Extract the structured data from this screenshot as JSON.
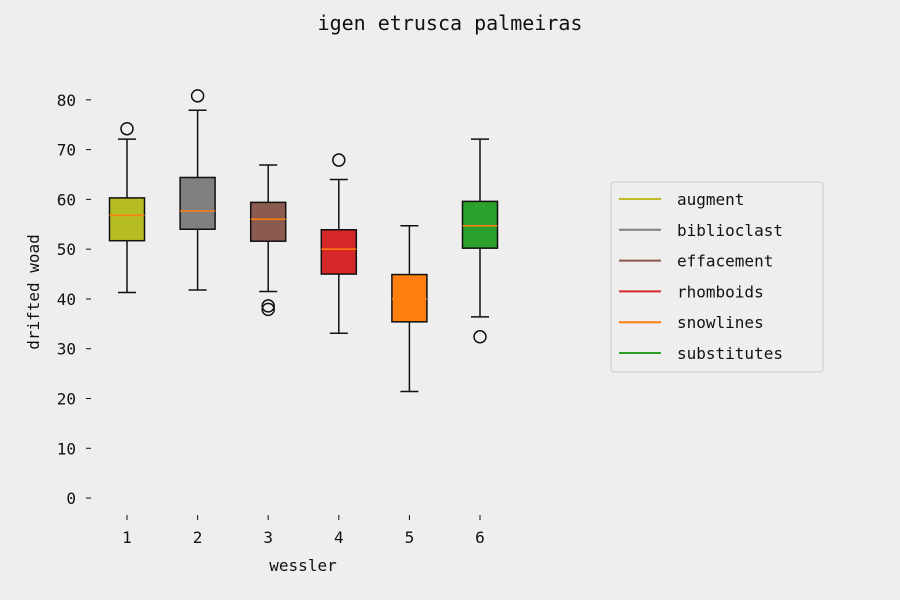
{
  "chart_data": {
    "type": "box",
    "title": "igen etrusca palmeiras",
    "xlabel": "wessler",
    "ylabel": "drifted woad",
    "ylim": [
      -3,
      88
    ],
    "yticks": [
      0,
      10,
      20,
      30,
      40,
      50,
      60,
      70,
      80
    ],
    "categories": [
      "1",
      "2",
      "3",
      "4",
      "5",
      "6"
    ],
    "grid": false,
    "legend_position": "right",
    "series": [
      {
        "name": "augment",
        "color": "#bcbd22",
        "median_color": "#ff7f0e",
        "box_color": "#b5bd22",
        "whisker_low": 41.3,
        "q1": 51.7,
        "median": 56.8,
        "q3": 60.3,
        "whisker_high": 72.1,
        "outliers": [
          74.2
        ]
      },
      {
        "name": "biblioclast",
        "color": "#7f7f7f",
        "median_color": "#ff7f0e",
        "box_color": "#808080",
        "whisker_low": 41.8,
        "q1": 54.0,
        "median": 57.7,
        "q3": 64.4,
        "whisker_high": 77.9,
        "outliers": [
          80.8
        ]
      },
      {
        "name": "effacement",
        "color": "#8c564b",
        "median_color": "#ff7f0e",
        "box_color": "#8c5b4f",
        "whisker_low": 41.5,
        "q1": 51.6,
        "median": 56.0,
        "q3": 59.4,
        "whisker_high": 66.9,
        "outliers": [
          37.9,
          38.6
        ]
      },
      {
        "name": "rhomboids",
        "color": "#d62728",
        "median_color": "#ff7f0e",
        "box_color": "#d62728",
        "whisker_low": 33.1,
        "q1": 45.0,
        "median": 50.0,
        "q3": 53.9,
        "whisker_high": 64.0,
        "outliers": [
          67.9
        ]
      },
      {
        "name": "snowlines",
        "color": "#ff7f0e",
        "median_color": "#ff7f0e",
        "box_color": "#ff7f0e",
        "whisker_low": 21.4,
        "q1": 35.4,
        "median": 40.0,
        "q3": 44.9,
        "whisker_high": 54.7,
        "outliers": []
      },
      {
        "name": "substitutes",
        "color": "#2ca02c",
        "median_color": "#ff7f0e",
        "box_color": "#2ca02c",
        "whisker_low": 36.4,
        "q1": 50.2,
        "median": 54.7,
        "q3": 59.6,
        "whisker_high": 72.1,
        "outliers": [
          32.4
        ]
      }
    ]
  }
}
